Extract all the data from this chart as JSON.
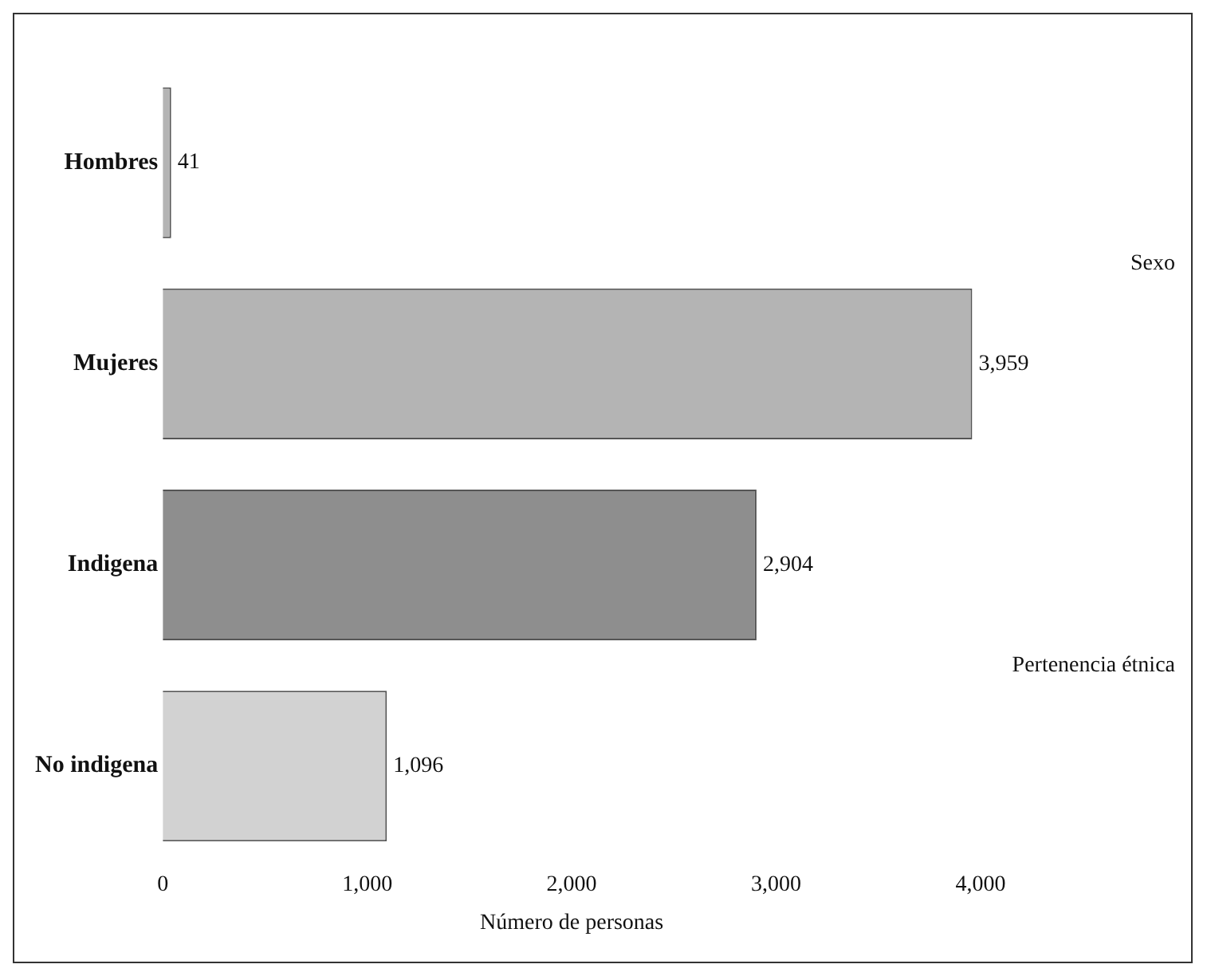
{
  "chart_data": {
    "type": "bar",
    "orientation": "horizontal",
    "categories": [
      "Hombres",
      "Mujeres",
      "Indigena",
      "No indigena"
    ],
    "values": [
      41,
      3959,
      2904,
      1096
    ],
    "colors": [
      "#b4b4b4",
      "#b4b4b4",
      "#8e8e8e",
      "#d2d2d2"
    ],
    "xlabel": "Número de personas",
    "xlim": [
      0,
      4000
    ],
    "xticks": [
      0,
      {
        "value": 1000,
        "label": "1,000"
      },
      {
        "value": 2000,
        "label": "2,000"
      },
      {
        "value": 3000,
        "label": "3,000"
      },
      {
        "value": 4000,
        "label": "4,000"
      }
    ],
    "value_labels": [
      "41",
      "3,959",
      "2,904",
      "1,096"
    ],
    "grid": false,
    "legend": false,
    "annotations": [
      "Sexo",
      "Pertenencia étnica"
    ]
  }
}
